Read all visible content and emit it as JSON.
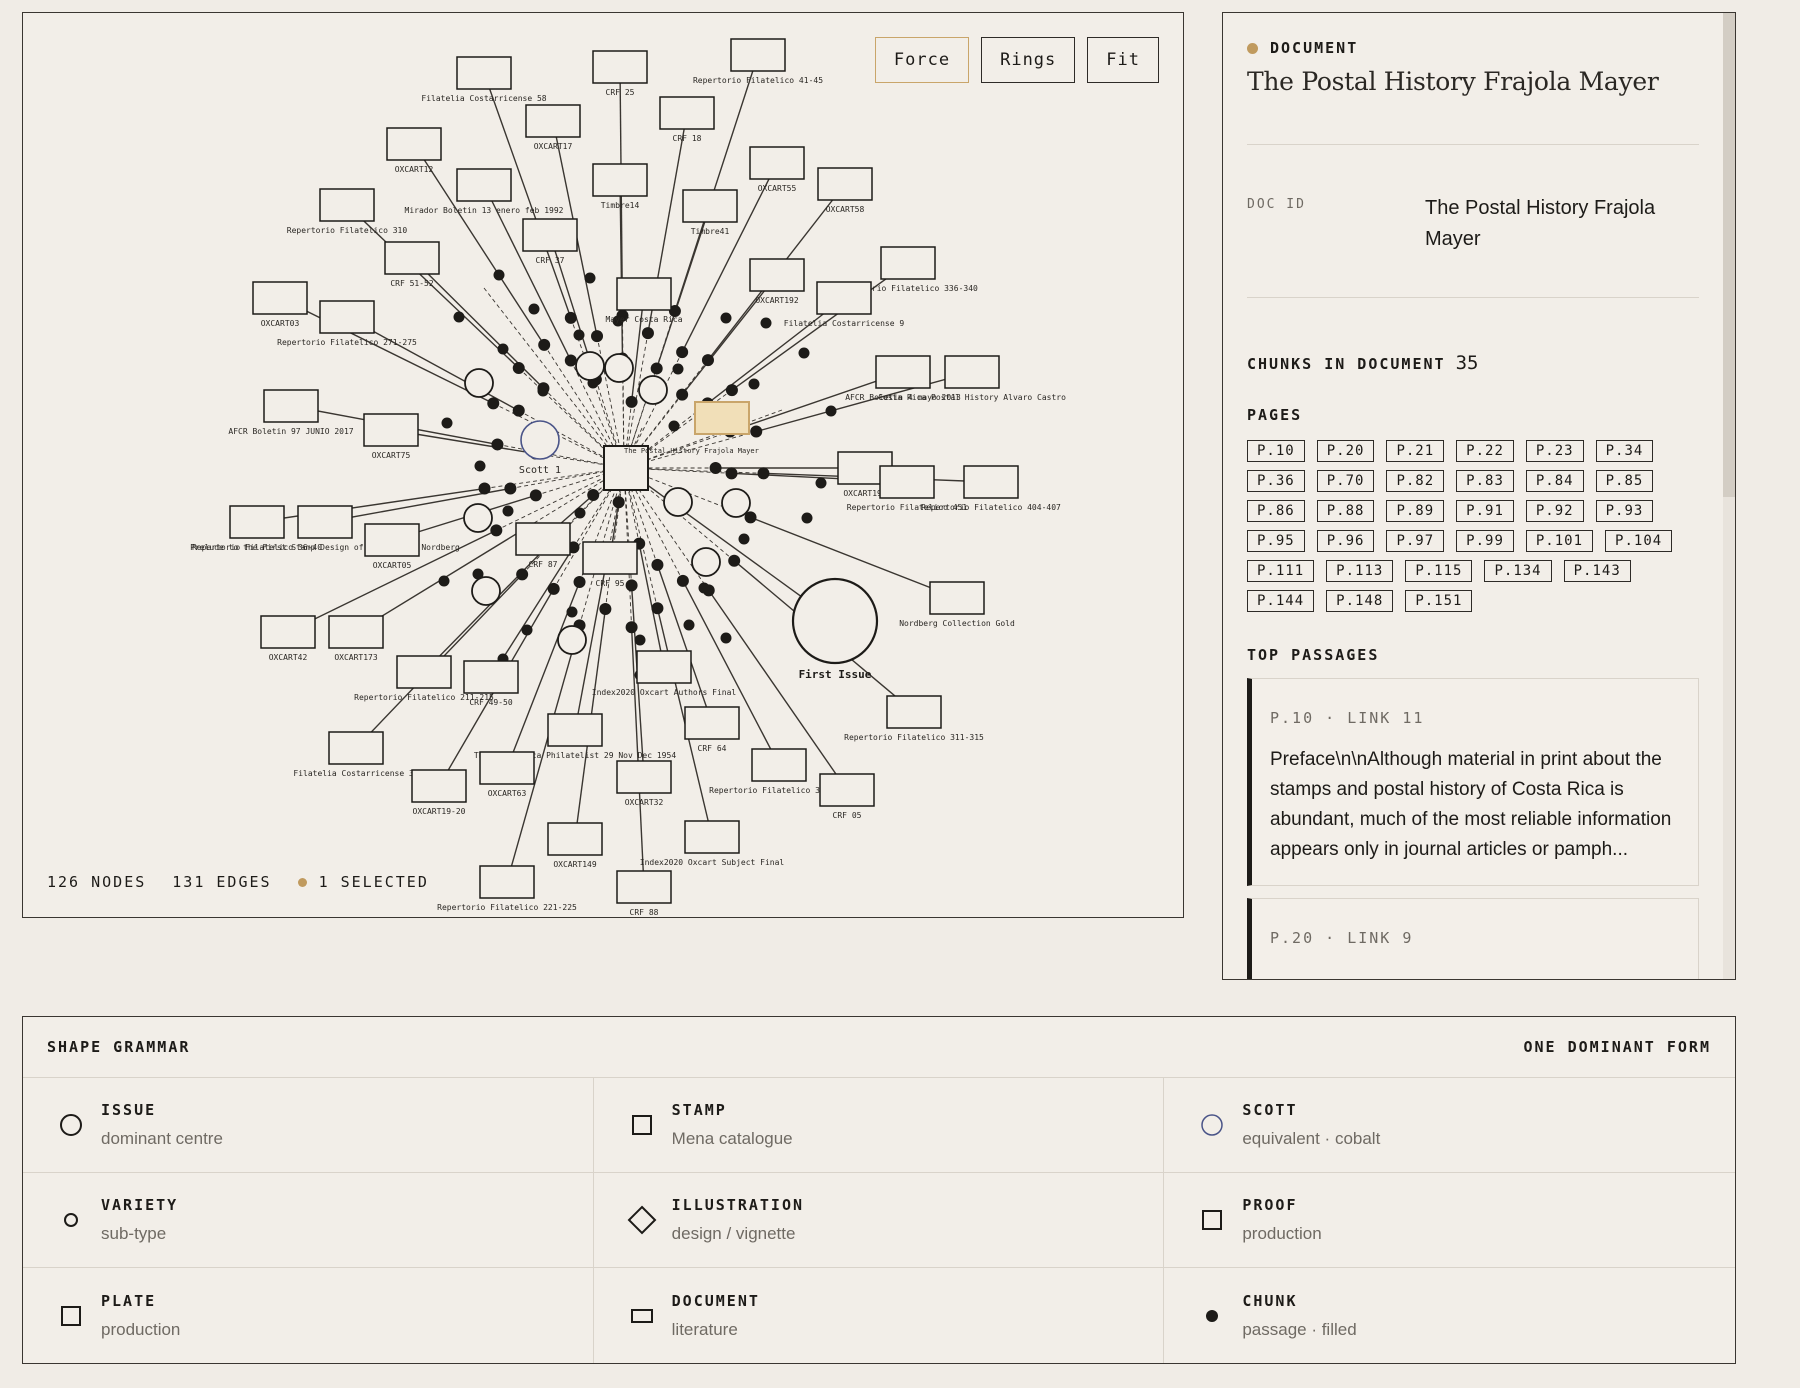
{
  "graph": {
    "layout_buttons": [
      {
        "label": "Force",
        "active": true
      },
      {
        "label": "Rings",
        "active": false
      },
      {
        "label": "Fit",
        "active": false
      }
    ],
    "stats": {
      "nodes": "126 NODES",
      "edges": "131 EDGES",
      "selected": "1 SELECTED"
    },
    "center_label": "The Postal History Frajola Mayer",
    "labels": {
      "first_issue": "First Issue",
      "scott": "Scott 1"
    },
    "colors": {
      "selected": "#c9a56a",
      "scott": "#4a5488",
      "ink": "#1d1b18"
    },
    "document_labels": [
      "Filatelia Costarricense 58",
      "CRF 25",
      "Repertorio Filatelico 41-45",
      "OXCART17",
      "CRF 18",
      "OXCART12",
      "Mirador Boletin 13 enero feb 1992",
      "Timbre14",
      "OXCART55",
      "Repertorio Filatelico 310",
      "CRF 37",
      "Timbre41",
      "OXCART58",
      "CRF 51-52",
      "OXCART192",
      "Repertorio Filatelico 336-340",
      "OXCART03",
      "Mayer Costa Rica",
      "Filatelia Costarricense 9",
      "Repertorio Filatelico 271-275",
      "AFCR Boletin 4 mayo 2013",
      "Costa Rica Postal History Alvaro Castro",
      "AFCR Boletin 97 JUNIO 2017",
      "OXCART75",
      "OXCART193",
      "Repertorio Filatelico 404-407",
      "Repertorio Filatelico 36-40",
      "Prelude to the First Stamp Design of Costa Rica Nordberg",
      "Repertorio Filatelico 451",
      "OXCART05",
      "CRF 87",
      "CRF 95",
      "Nordberg Collection Gold",
      "OXCART42",
      "OXCART173",
      "Repertorio Filatelico 211-215",
      "CRF 49-50",
      "Index2020 Oxcart Authors Final",
      "Repertorio Filatelico 311-315",
      "CRF 64",
      "Filatelia Costarricense 36",
      "The Costa Rica Philatelist 29 Nov Dec 1954",
      "OXCART63",
      "OXCART19-20",
      "OXCART32",
      "Repertorio Filatelico 341-345",
      "CRF 05",
      "OXCART149",
      "Index2020 Oxcart Subject Final",
      "Repertorio Filatelico 221-225",
      "CRF 88"
    ]
  },
  "document": {
    "kind": "DOCUMENT",
    "title": "The Postal History Frajola Mayer",
    "doc_id_label": "DOC ID",
    "doc_id_value": "The Postal History Frajola Mayer",
    "chunks_label": "CHUNKS IN DOCUMENT",
    "chunks_value": "35",
    "pages_label": "PAGES",
    "pages": [
      "P.10",
      "P.20",
      "P.21",
      "P.22",
      "P.23",
      "P.34",
      "P.36",
      "P.70",
      "P.82",
      "P.83",
      "P.84",
      "P.85",
      "P.86",
      "P.88",
      "P.89",
      "P.91",
      "P.92",
      "P.93",
      "P.95",
      "P.96",
      "P.97",
      "P.99",
      "P.101",
      "P.104",
      "P.111",
      "P.113",
      "P.115",
      "P.134",
      "P.143",
      "P.144",
      "P.148",
      "P.151"
    ],
    "top_passages_label": "TOP PASSAGES",
    "passages": [
      {
        "head": "P.10 · LINK 11",
        "text": "Preface\\n\\nAlthough material in print about the stamps and postal history of Costa Rica is abundant, much of the most reliable information appears only in journal articles or pamph..."
      },
      {
        "head": "P.20 · LINK 9",
        "text": ""
      }
    ],
    "accent": "#c09a5e"
  },
  "grammar": {
    "title": "SHAPE GRAMMAR",
    "subtitle": "ONE DOMINANT FORM",
    "items": [
      {
        "name": "ISSUE",
        "desc": "dominant centre",
        "icon": "circle-large-icon"
      },
      {
        "name": "STAMP",
        "desc": "Mena catalogue",
        "icon": "square-icon"
      },
      {
        "name": "SCOTT",
        "desc": "equivalent · cobalt",
        "icon": "circle-cobalt-icon"
      },
      {
        "name": "VARIETY",
        "desc": "sub-type",
        "icon": "circle-small-icon"
      },
      {
        "name": "ILLUSTRATION",
        "desc": "design / vignette",
        "icon": "diamond-icon"
      },
      {
        "name": "PROOF",
        "desc": "production",
        "icon": "square-icon"
      },
      {
        "name": "PLATE",
        "desc": "production",
        "icon": "square-icon"
      },
      {
        "name": "DOCUMENT",
        "desc": "literature",
        "icon": "rectangle-icon"
      },
      {
        "name": "CHUNK",
        "desc": "passage · filled",
        "icon": "dot-filled-icon"
      }
    ],
    "cobalt": "#4a5488"
  }
}
